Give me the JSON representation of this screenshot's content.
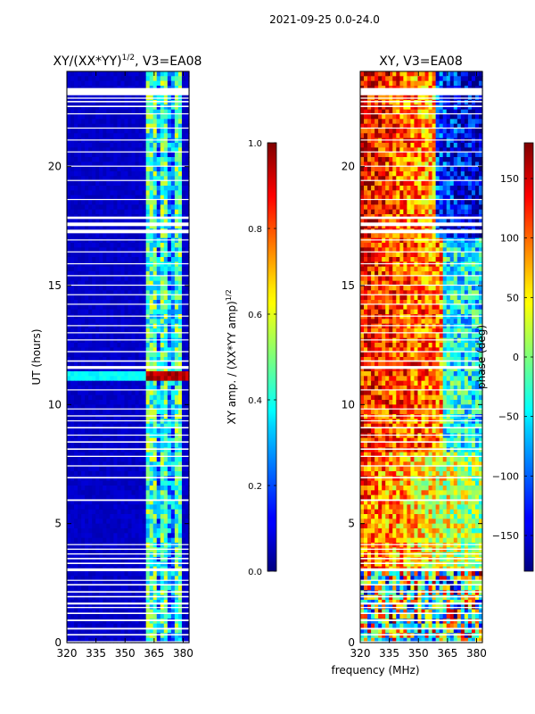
{
  "figure_title": "2021-09-25 0.0-24.0",
  "shared_xlabel": "frequency (MHz)",
  "chart_data": [
    {
      "type": "heatmap",
      "panel": "left",
      "title_main": "XY/(XX*YY)",
      "title_exp": "1/2",
      "title_tail": ", V3=EA08",
      "xlabel": "frequency (MHz)",
      "ylabel": "UT (hours)",
      "xlim": [
        320,
        383
      ],
      "ylim": [
        0,
        24
      ],
      "xticks": [
        320,
        335,
        350,
        365,
        380
      ],
      "yticks": [
        0,
        5,
        10,
        15,
        20
      ],
      "colormap": "jet",
      "colorbar": {
        "label_main": "XY amp. / (XX*YY amp)",
        "label_exp": "1/2",
        "range": [
          0.0,
          1.0
        ],
        "ticks": [
          "0.0",
          "0.2",
          "0.4",
          "0.6",
          "0.8",
          "1.0"
        ]
      },
      "features": {
        "background_level": 0.05,
        "active_band_mhz": [
          361,
          380
        ],
        "active_band_level": 0.45,
        "hot_row_hours": [
          11.0,
          11.4
        ]
      }
    },
    {
      "type": "heatmap",
      "panel": "right",
      "title": "XY, V3=EA08",
      "xlabel": "frequency (MHz)",
      "ylabel": "",
      "xlim": [
        320,
        383
      ],
      "ylim": [
        0,
        24
      ],
      "xticks": [
        320,
        335,
        350,
        365,
        380
      ],
      "yticks": [
        0,
        5,
        10,
        15,
        20
      ],
      "colormap": "jet",
      "colorbar": {
        "label": "phase (deg)",
        "range": [
          -180,
          180
        ],
        "ticks": [
          "150",
          "100",
          "50",
          "0",
          "−50",
          "−100",
          "−150"
        ]
      }
    }
  ],
  "flagged_gaps_hours": [
    [
      0.0,
      0.06
    ],
    [
      0.3,
      0.36
    ],
    [
      0.55,
      0.62
    ],
    [
      0.9,
      0.97
    ],
    [
      1.2,
      1.26
    ],
    [
      1.45,
      1.5
    ],
    [
      1.6,
      1.68
    ],
    [
      1.9,
      1.96
    ],
    [
      2.1,
      2.16
    ],
    [
      2.4,
      2.46
    ],
    [
      2.6,
      2.64
    ],
    [
      3.0,
      3.12
    ],
    [
      3.3,
      3.36
    ],
    [
      3.5,
      3.56
    ],
    [
      3.7,
      3.75
    ],
    [
      3.9,
      3.95
    ],
    [
      4.1,
      4.14
    ],
    [
      5.95,
      6.02
    ],
    [
      6.9,
      6.96
    ],
    [
      7.4,
      7.45
    ],
    [
      7.8,
      7.85
    ],
    [
      8.1,
      8.16
    ],
    [
      8.4,
      8.46
    ],
    [
      8.7,
      8.74
    ],
    [
      9.0,
      9.06
    ],
    [
      9.3,
      9.34
    ],
    [
      9.5,
      9.55
    ],
    [
      9.8,
      9.84
    ],
    [
      10.6,
      10.64
    ],
    [
      11.5,
      11.62
    ],
    [
      11.8,
      11.86
    ],
    [
      12.2,
      12.25
    ],
    [
      12.7,
      12.74
    ],
    [
      13.0,
      13.04
    ],
    [
      13.3,
      13.34
    ],
    [
      13.7,
      13.74
    ],
    [
      14.2,
      14.24
    ],
    [
      14.6,
      14.64
    ],
    [
      15.0,
      15.04
    ],
    [
      15.4,
      15.44
    ],
    [
      15.9,
      15.94
    ],
    [
      16.4,
      16.44
    ],
    [
      16.9,
      16.94
    ],
    [
      17.2,
      17.35
    ],
    [
      17.5,
      17.65
    ],
    [
      17.8,
      17.9
    ],
    [
      18.6,
      18.64
    ],
    [
      19.4,
      19.44
    ],
    [
      20.0,
      20.04
    ],
    [
      20.6,
      20.64
    ],
    [
      21.1,
      21.14
    ],
    [
      21.6,
      21.64
    ],
    [
      22.2,
      22.24
    ],
    [
      22.5,
      22.56
    ],
    [
      22.7,
      22.76
    ],
    [
      22.85,
      22.9
    ],
    [
      23.0,
      23.3
    ]
  ]
}
